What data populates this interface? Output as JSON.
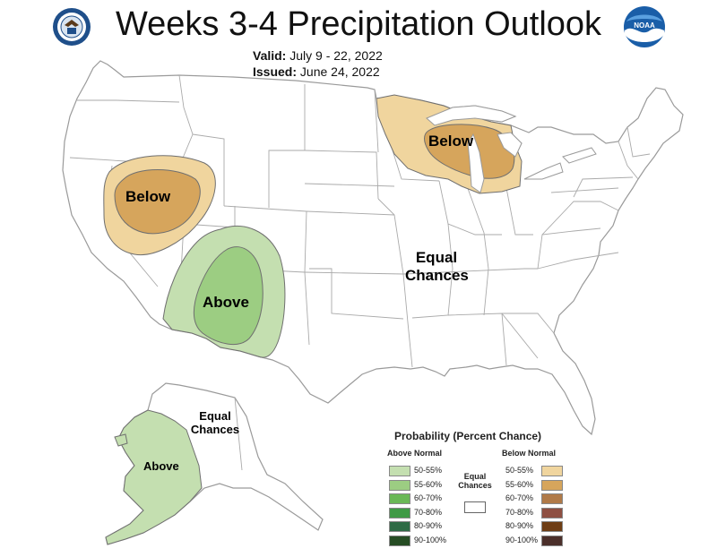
{
  "title": "Weeks 3-4 Precipitation Outlook",
  "valid_label": "Valid:",
  "valid_value": "July 9 - 22, 2022",
  "issued_label": "Issued:",
  "issued_value": "June 24, 2022",
  "logos": {
    "left": "department-of-commerce-seal",
    "right": "noaa-logo",
    "noaa_text": "NOAA"
  },
  "map_labels": {
    "great_basin": "Below",
    "great_lakes": "Below",
    "southwest": "Above",
    "conus_equal_line1": "Equal",
    "conus_equal_line2": "Chances",
    "alaska_equal_line1": "Equal",
    "alaska_equal_line2": "Chances",
    "alaska": "Above"
  },
  "legend": {
    "title": "Probability (Percent Chance)",
    "above_heading": "Above Normal",
    "below_heading": "Below Normal",
    "equal_line1": "Equal",
    "equal_line2": "Chances",
    "above": [
      {
        "label": "50-55%",
        "color": "#c4dfb0"
      },
      {
        "label": "55-60%",
        "color": "#9ccd82"
      },
      {
        "label": "60-70%",
        "color": "#6ab856"
      },
      {
        "label": "70-80%",
        "color": "#3f9a45"
      },
      {
        "label": "80-90%",
        "color": "#2e6b45"
      },
      {
        "label": "90-100%",
        "color": "#264d24"
      }
    ],
    "below": [
      {
        "label": "50-55%",
        "color": "#f0d59e"
      },
      {
        "label": "55-60%",
        "color": "#d6a55c"
      },
      {
        "label": "60-70%",
        "color": "#b07a48"
      },
      {
        "label": "70-80%",
        "color": "#8e4f42"
      },
      {
        "label": "80-90%",
        "color": "#6e3d14"
      },
      {
        "label": "90-100%",
        "color": "#4b2f2a"
      }
    ]
  },
  "colors": {
    "land": "#ffffff",
    "border": "#9a9a9a",
    "above_50": "#c4dfb0",
    "above_55": "#9ccd82",
    "below_50": "#f0d59e",
    "below_55": "#d6a55c",
    "contour": "#6f6f6f"
  }
}
